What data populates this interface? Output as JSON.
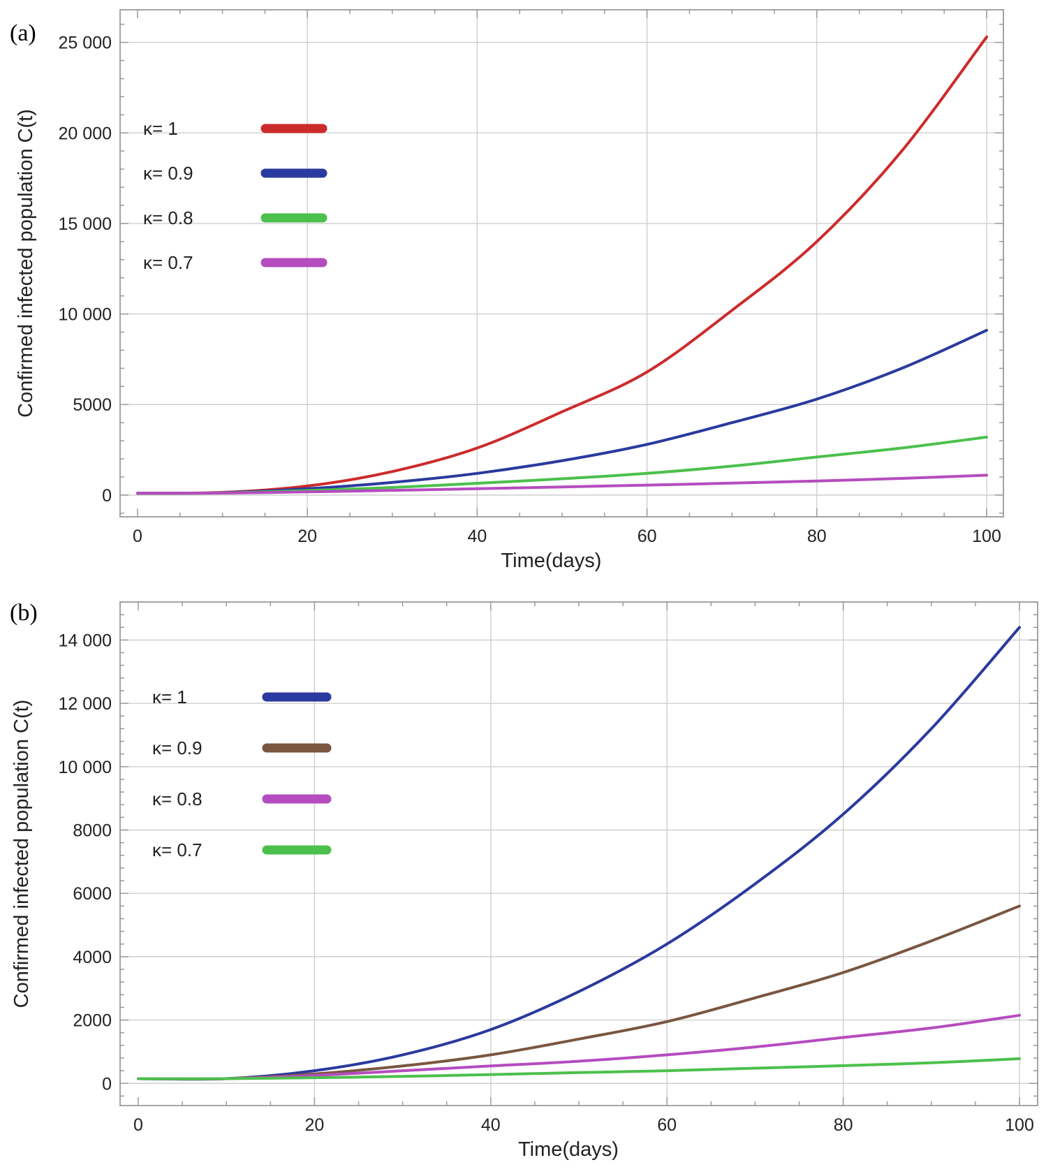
{
  "chart_data": [
    {
      "panel": "(a)",
      "type": "line",
      "xlabel": "Time(days)",
      "ylabel": "Confirmed infected population C(t)",
      "xlim": [
        0,
        100
      ],
      "ylim": [
        -1200,
        26800
      ],
      "xticks": [
        0,
        20,
        40,
        60,
        80,
        100
      ],
      "xtick_labels": [
        "0",
        "20",
        "40",
        "60",
        "80",
        "100"
      ],
      "yticks": [
        0,
        5000,
        10000,
        15000,
        20000,
        25000
      ],
      "ytick_labels": [
        "0",
        "5000",
        "10 000",
        "15 000",
        "20 000",
        "25 000"
      ],
      "grid": true,
      "legend_position": "upper-left",
      "x": [
        0,
        10,
        20,
        30,
        40,
        50,
        60,
        70,
        80,
        90,
        100
      ],
      "series": [
        {
          "name": "κ= 1",
          "color": "#cc2b2b",
          "values": [
            100,
            150,
            500,
            1300,
            2600,
            4600,
            6800,
            10200,
            14000,
            19000,
            25300
          ]
        },
        {
          "name": "κ= 0.9",
          "color": "#2a3a9e",
          "values": [
            100,
            130,
            350,
            700,
            1200,
            1900,
            2800,
            4000,
            5300,
            7000,
            9100
          ]
        },
        {
          "name": "κ= 0.8",
          "color": "#4cc04c",
          "values": [
            100,
            120,
            250,
            420,
            650,
            900,
            1200,
            1600,
            2100,
            2600,
            3200
          ]
        },
        {
          "name": "κ= 0.7",
          "color": "#b54cbf",
          "values": [
            100,
            110,
            180,
            260,
            350,
            450,
            550,
            660,
            780,
            920,
            1100
          ]
        }
      ]
    },
    {
      "panel": "(b)",
      "type": "line",
      "xlabel": "Time(days)",
      "ylabel": "Confirmed infected population C(t)",
      "xlim": [
        0,
        100
      ],
      "ylim": [
        -700,
        15200
      ],
      "xticks": [
        0,
        20,
        40,
        60,
        80,
        100
      ],
      "xtick_labels": [
        "0",
        "20",
        "40",
        "60",
        "80",
        "100"
      ],
      "yticks": [
        0,
        2000,
        4000,
        6000,
        8000,
        10000,
        12000,
        14000
      ],
      "ytick_labels": [
        "0",
        "2000",
        "4000",
        "6000",
        "8000",
        "10 000",
        "12 000",
        "14 000"
      ],
      "grid": true,
      "legend_position": "upper-left",
      "x": [
        0,
        10,
        20,
        30,
        40,
        50,
        60,
        70,
        80,
        90,
        100
      ],
      "series": [
        {
          "name": "κ= 1",
          "color": "#2a3a9e",
          "values": [
            150,
            150,
            400,
            900,
            1700,
            2900,
            4400,
            6300,
            8500,
            11200,
            14400
          ]
        },
        {
          "name": "κ= 0.9",
          "color": "#7a5640",
          "values": [
            150,
            150,
            300,
            550,
            900,
            1400,
            1950,
            2700,
            3500,
            4500,
            5600
          ]
        },
        {
          "name": "κ= 0.8",
          "color": "#b54cbf",
          "values": [
            150,
            150,
            250,
            400,
            550,
            700,
            900,
            1150,
            1450,
            1750,
            2150
          ]
        },
        {
          "name": "κ= 0.7",
          "color": "#4cc04c",
          "values": [
            150,
            150,
            180,
            220,
            280,
            340,
            400,
            480,
            560,
            650,
            780
          ]
        }
      ]
    }
  ]
}
